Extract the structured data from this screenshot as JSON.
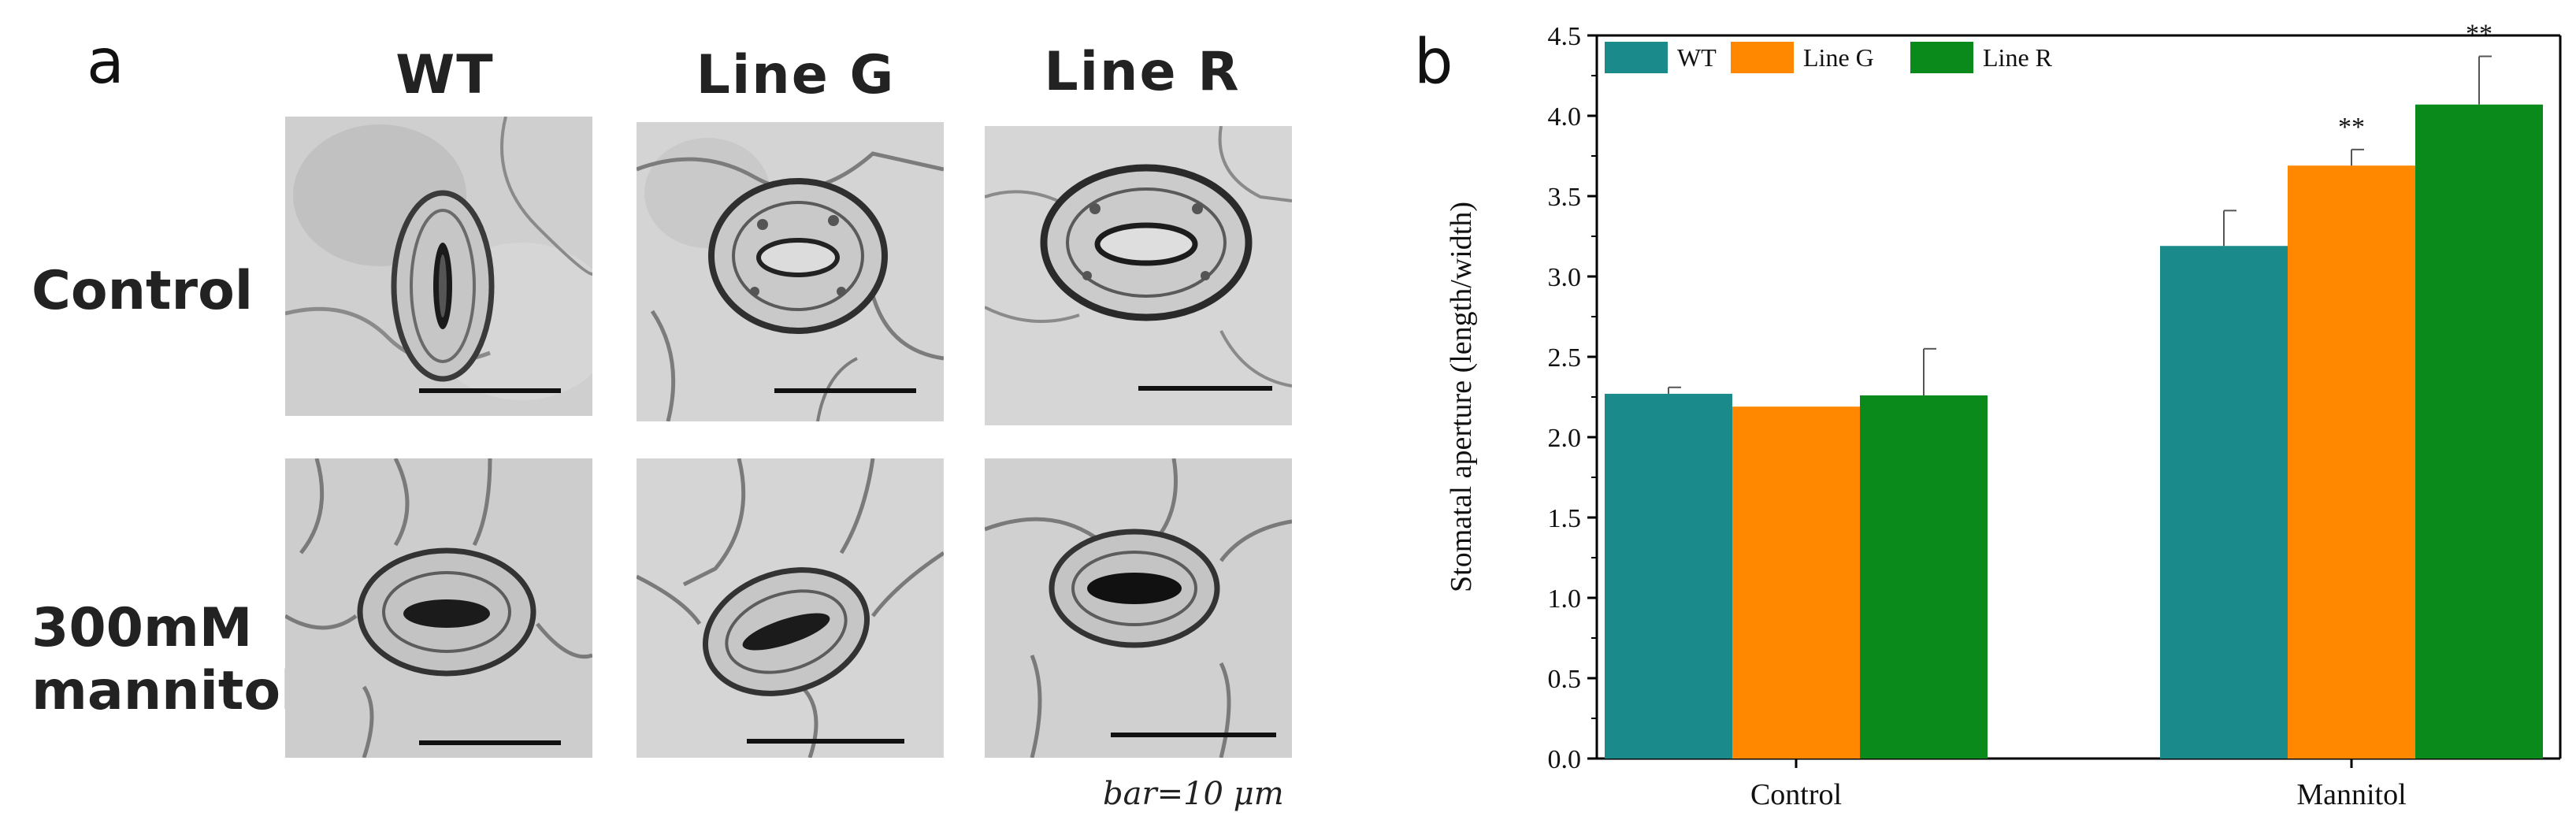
{
  "panel_a": {
    "letter": "a",
    "columns": [
      "WT",
      "Line G",
      "Line R"
    ],
    "rows": [
      {
        "line1": "Control",
        "line2": ""
      },
      {
        "line1": "300mM",
        "line2": "mannitol"
      }
    ],
    "scale_note": "bar=10 μm"
  },
  "panel_b": {
    "letter": "b"
  },
  "chart_data": {
    "type": "bar",
    "title": "",
    "xlabel": "",
    "ylabel": "Stomatal aperture (length/width)",
    "categories": [
      "Control",
      "Mannitol"
    ],
    "ylim": [
      0,
      4.5
    ],
    "yticks": [
      "0.0",
      "0.5",
      "1.0",
      "1.5",
      "2.0",
      "2.5",
      "3.0",
      "3.5",
      "4.0",
      "4.5"
    ],
    "grid": false,
    "legend_position": "top-left",
    "series": [
      {
        "name": "WT",
        "color": "#1a8a8a",
        "values": [
          2.27,
          3.19
        ],
        "errors": [
          0.04,
          0.22
        ],
        "annotations": [
          "",
          ""
        ]
      },
      {
        "name": "Line G",
        "color": "#ff8800",
        "values": [
          2.19,
          3.69
        ],
        "errors": [
          0.0,
          0.1
        ],
        "annotations": [
          "",
          "**"
        ]
      },
      {
        "name": "Line R",
        "color": "#0a8a1a",
        "values": [
          2.26,
          4.07
        ],
        "errors": [
          0.29,
          0.3
        ],
        "annotations": [
          "",
          "**"
        ]
      }
    ]
  }
}
